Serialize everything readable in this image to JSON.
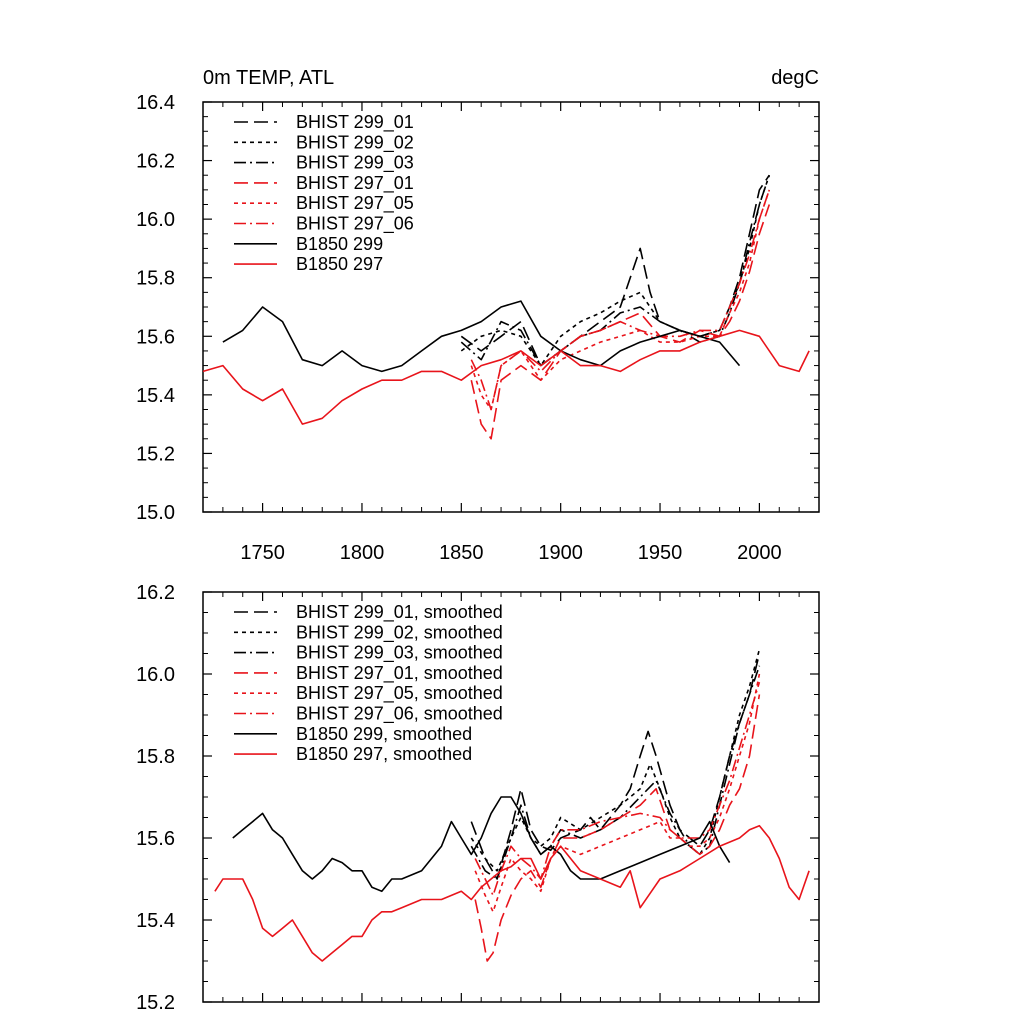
{
  "chart_data": [
    {
      "type": "line",
      "title": "0m TEMP, ATL",
      "units": "degC",
      "xlim": [
        1720,
        2030
      ],
      "ylim": [
        15.0,
        16.4
      ],
      "xticks": [
        1750,
        1800,
        1850,
        1900,
        1950,
        2000
      ],
      "yticks": [
        15.0,
        15.2,
        15.4,
        15.6,
        15.8,
        16.0,
        16.2,
        16.4
      ],
      "grid": false,
      "legend_position": "top-left",
      "series": [
        {
          "name": "BHIST 299_01",
          "color": "#000000",
          "dash": "long-dash",
          "x": [
            1850,
            1860,
            1870,
            1880,
            1890,
            1900,
            1910,
            1920,
            1930,
            1940,
            1945,
            1950,
            1960,
            1970,
            1980,
            1985,
            1990,
            1995,
            2000,
            2005
          ],
          "y": [
            15.6,
            15.55,
            15.6,
            15.65,
            15.5,
            15.55,
            15.6,
            15.65,
            15.7,
            15.9,
            15.75,
            15.65,
            15.62,
            15.6,
            15.62,
            15.7,
            15.8,
            15.95,
            16.1,
            16.15
          ]
        },
        {
          "name": "BHIST 299_02",
          "color": "#000000",
          "dash": "short-dash",
          "x": [
            1850,
            1860,
            1870,
            1880,
            1890,
            1900,
            1910,
            1920,
            1930,
            1940,
            1950,
            1960,
            1970,
            1980,
            1985,
            1990,
            1995,
            2000,
            2005
          ],
          "y": [
            15.55,
            15.6,
            15.62,
            15.6,
            15.5,
            15.6,
            15.65,
            15.68,
            15.72,
            15.75,
            15.65,
            15.62,
            15.6,
            15.62,
            15.7,
            15.78,
            15.9,
            16.05,
            16.15
          ]
        },
        {
          "name": "BHIST 299_03",
          "color": "#000000",
          "dash": "dash-dot",
          "x": [
            1850,
            1860,
            1870,
            1880,
            1890,
            1900,
            1910,
            1920,
            1930,
            1940,
            1950,
            1960,
            1970,
            1980,
            1985,
            1990,
            1995,
            2000,
            2005
          ],
          "y": [
            15.58,
            15.52,
            15.65,
            15.62,
            15.5,
            15.55,
            15.6,
            15.62,
            15.68,
            15.7,
            15.65,
            15.62,
            15.58,
            15.6,
            15.68,
            15.78,
            15.92,
            16.05,
            16.15
          ]
        },
        {
          "name": "BHIST 297_01",
          "color": "#e8141b",
          "dash": "long-dash",
          "x": [
            1855,
            1860,
            1865,
            1870,
            1880,
            1890,
            1900,
            1910,
            1920,
            1930,
            1940,
            1950,
            1960,
            1970,
            1980,
            1985,
            1990,
            1995,
            2000,
            2005
          ],
          "y": [
            15.45,
            15.3,
            15.25,
            15.45,
            15.5,
            15.45,
            15.55,
            15.6,
            15.62,
            15.65,
            15.68,
            15.6,
            15.58,
            15.62,
            15.6,
            15.65,
            15.72,
            15.82,
            15.95,
            16.05
          ]
        },
        {
          "name": "BHIST 297_05",
          "color": "#e8141b",
          "dash": "short-dash",
          "x": [
            1855,
            1860,
            1865,
            1870,
            1880,
            1890,
            1900,
            1910,
            1920,
            1930,
            1940,
            1950,
            1960,
            1970,
            1980,
            1985,
            1990,
            1995,
            2000,
            2005
          ],
          "y": [
            15.5,
            15.4,
            15.35,
            15.5,
            15.55,
            15.45,
            15.52,
            15.55,
            15.58,
            15.6,
            15.62,
            15.58,
            15.58,
            15.6,
            15.6,
            15.68,
            15.75,
            15.85,
            16.0,
            16.1
          ]
        },
        {
          "name": "BHIST 297_06",
          "color": "#e8141b",
          "dash": "dash-dot",
          "x": [
            1855,
            1860,
            1865,
            1870,
            1880,
            1890,
            1900,
            1910,
            1920,
            1930,
            1940,
            1950,
            1960,
            1970,
            1980,
            1985,
            1990,
            1995,
            2000,
            2005
          ],
          "y": [
            15.52,
            15.45,
            15.35,
            15.5,
            15.55,
            15.48,
            15.55,
            15.6,
            15.62,
            15.65,
            15.62,
            15.6,
            15.6,
            15.62,
            15.62,
            15.7,
            15.78,
            15.88,
            16.0,
            16.1
          ]
        },
        {
          "name": "B1850 299",
          "color": "#000000",
          "dash": "solid",
          "x": [
            1730,
            1740,
            1750,
            1760,
            1770,
            1780,
            1790,
            1800,
            1810,
            1820,
            1830,
            1840,
            1850,
            1860,
            1870,
            1880,
            1890,
            1900,
            1910,
            1920,
            1930,
            1940,
            1950,
            1960,
            1970,
            1980,
            1990
          ],
          "y": [
            15.58,
            15.62,
            15.7,
            15.65,
            15.52,
            15.5,
            15.55,
            15.5,
            15.48,
            15.5,
            15.55,
            15.6,
            15.62,
            15.65,
            15.7,
            15.72,
            15.6,
            15.55,
            15.52,
            15.5,
            15.55,
            15.58,
            15.6,
            15.62,
            15.6,
            15.58,
            15.5
          ]
        },
        {
          "name": "B1850 297",
          "color": "#e8141b",
          "dash": "solid",
          "x": [
            1720,
            1730,
            1740,
            1750,
            1760,
            1770,
            1780,
            1790,
            1800,
            1810,
            1820,
            1830,
            1840,
            1850,
            1860,
            1870,
            1880,
            1890,
            1900,
            1910,
            1920,
            1930,
            1940,
            1950,
            1960,
            1970,
            1980,
            1990,
            2000,
            2010,
            2020,
            2025
          ],
          "y": [
            15.48,
            15.5,
            15.42,
            15.38,
            15.42,
            15.3,
            15.32,
            15.38,
            15.42,
            15.45,
            15.45,
            15.48,
            15.48,
            15.45,
            15.5,
            15.52,
            15.55,
            15.5,
            15.55,
            15.5,
            15.5,
            15.48,
            15.52,
            15.55,
            15.55,
            15.58,
            15.6,
            15.62,
            15.6,
            15.5,
            15.48,
            15.55
          ]
        }
      ]
    },
    {
      "type": "line",
      "title": "",
      "units": "",
      "xlim": [
        1720,
        2030
      ],
      "ylim": [
        15.2,
        16.2
      ],
      "xticks": [
        1750,
        1800,
        1850,
        1900,
        1950,
        2000
      ],
      "yticks": [
        15.2,
        15.4,
        15.6,
        15.8,
        16.0,
        16.2
      ],
      "show_x_tick_labels": false,
      "grid": false,
      "legend_position": "top-left",
      "series": [
        {
          "name": "BHIST 299_01, smoothed",
          "color": "#000000",
          "dash": "long-dash",
          "x": [
            1855,
            1862,
            1868,
            1875,
            1880,
            1885,
            1890,
            1895,
            1900,
            1910,
            1915,
            1920,
            1930,
            1935,
            1940,
            1944,
            1948,
            1955,
            1960,
            1965,
            1970,
            1975,
            1980,
            1985,
            1990,
            1995,
            2000
          ],
          "y": [
            15.64,
            15.55,
            15.5,
            15.62,
            15.72,
            15.62,
            15.58,
            15.57,
            15.6,
            15.62,
            15.65,
            15.62,
            15.68,
            15.72,
            15.8,
            15.86,
            15.8,
            15.68,
            15.62,
            15.6,
            15.58,
            15.62,
            15.7,
            15.8,
            15.88,
            15.95,
            16.05
          ]
        },
        {
          "name": "BHIST 299_02, smoothed",
          "color": "#000000",
          "dash": "short-dash",
          "x": [
            1855,
            1862,
            1868,
            1875,
            1880,
            1885,
            1890,
            1895,
            1900,
            1910,
            1920,
            1930,
            1940,
            1945,
            1950,
            1955,
            1960,
            1965,
            1970,
            1975,
            1980,
            1985,
            1990,
            1995,
            2000
          ],
          "y": [
            15.6,
            15.55,
            15.52,
            15.6,
            15.65,
            15.6,
            15.58,
            15.6,
            15.65,
            15.62,
            15.65,
            15.68,
            15.72,
            15.78,
            15.72,
            15.65,
            15.6,
            15.58,
            15.56,
            15.6,
            15.7,
            15.8,
            15.9,
            15.97,
            16.06
          ]
        },
        {
          "name": "BHIST 299_03, smoothed",
          "color": "#000000",
          "dash": "dash-dot",
          "x": [
            1855,
            1862,
            1868,
            1875,
            1880,
            1885,
            1890,
            1895,
            1900,
            1910,
            1920,
            1930,
            1940,
            1948,
            1955,
            1960,
            1965,
            1970,
            1975,
            1980,
            1985,
            1990,
            1995,
            2000
          ],
          "y": [
            15.58,
            15.52,
            15.5,
            15.6,
            15.68,
            15.6,
            15.56,
            15.58,
            15.62,
            15.6,
            15.62,
            15.65,
            15.7,
            15.74,
            15.66,
            15.62,
            15.58,
            15.56,
            15.58,
            15.68,
            15.78,
            15.88,
            15.95,
            16.02
          ]
        },
        {
          "name": "BHIST 297_01, smoothed",
          "color": "#e8141b",
          "dash": "long-dash",
          "x": [
            1857,
            1860,
            1863,
            1866,
            1870,
            1875,
            1880,
            1885,
            1890,
            1895,
            1900,
            1910,
            1920,
            1930,
            1940,
            1948,
            1955,
            1960,
            1965,
            1970,
            1975,
            1980,
            1985,
            1990,
            1995,
            2000
          ],
          "y": [
            15.45,
            15.38,
            15.3,
            15.32,
            15.4,
            15.46,
            15.5,
            15.52,
            15.48,
            15.55,
            15.6,
            15.6,
            15.62,
            15.65,
            15.68,
            15.72,
            15.62,
            15.6,
            15.58,
            15.56,
            15.58,
            15.62,
            15.68,
            15.72,
            15.8,
            15.95
          ]
        },
        {
          "name": "BHIST 297_05, smoothed",
          "color": "#e8141b",
          "dash": "short-dash",
          "x": [
            1857,
            1862,
            1866,
            1870,
            1875,
            1880,
            1885,
            1890,
            1895,
            1900,
            1910,
            1920,
            1930,
            1940,
            1950,
            1955,
            1960,
            1965,
            1970,
            1975,
            1980,
            1985,
            1990,
            1995,
            2000
          ],
          "y": [
            15.52,
            15.46,
            15.42,
            15.48,
            15.55,
            15.52,
            15.5,
            15.47,
            15.55,
            15.58,
            15.56,
            15.58,
            15.6,
            15.62,
            15.64,
            15.6,
            15.6,
            15.58,
            15.58,
            15.6,
            15.65,
            15.72,
            15.8,
            15.88,
            16.0
          ]
        },
        {
          "name": "BHIST 297_06, smoothed",
          "color": "#e8141b",
          "dash": "dash-dot",
          "x": [
            1857,
            1862,
            1866,
            1870,
            1875,
            1880,
            1885,
            1890,
            1895,
            1900,
            1910,
            1920,
            1930,
            1940,
            1950,
            1955,
            1960,
            1965,
            1970,
            1975,
            1980,
            1985,
            1990,
            1995,
            2000
          ],
          "y": [
            15.55,
            15.5,
            15.46,
            15.52,
            15.58,
            15.55,
            15.53,
            15.5,
            15.58,
            15.62,
            15.62,
            15.64,
            15.65,
            15.66,
            15.65,
            15.62,
            15.6,
            15.6,
            15.6,
            15.62,
            15.68,
            15.74,
            15.82,
            15.9,
            15.98
          ]
        },
        {
          "name": "B1850 299, smoothed",
          "color": "#000000",
          "dash": "solid",
          "x": [
            1735,
            1740,
            1745,
            1750,
            1755,
            1760,
            1765,
            1770,
            1775,
            1780,
            1785,
            1790,
            1795,
            1800,
            1805,
            1810,
            1815,
            1820,
            1830,
            1840,
            1845,
            1850,
            1855,
            1860,
            1865,
            1870,
            1875,
            1880,
            1885,
            1890,
            1895,
            1900,
            1905,
            1910,
            1920,
            1930,
            1940,
            1950,
            1960,
            1970,
            1975,
            1980,
            1985
          ],
          "y": [
            15.6,
            15.62,
            15.64,
            15.66,
            15.62,
            15.6,
            15.56,
            15.52,
            15.5,
            15.52,
            15.55,
            15.54,
            15.52,
            15.52,
            15.48,
            15.47,
            15.5,
            15.5,
            15.52,
            15.58,
            15.64,
            15.6,
            15.56,
            15.6,
            15.66,
            15.7,
            15.7,
            15.66,
            15.6,
            15.56,
            15.58,
            15.56,
            15.52,
            15.5,
            15.5,
            15.52,
            15.54,
            15.56,
            15.58,
            15.6,
            15.64,
            15.58,
            15.54
          ]
        },
        {
          "name": "B1850 297, smoothed",
          "color": "#e8141b",
          "dash": "solid",
          "x": [
            1726,
            1730,
            1735,
            1740,
            1745,
            1750,
            1755,
            1760,
            1765,
            1770,
            1775,
            1780,
            1785,
            1790,
            1795,
            1800,
            1805,
            1810,
            1815,
            1820,
            1830,
            1840,
            1850,
            1855,
            1860,
            1865,
            1870,
            1875,
            1880,
            1885,
            1890,
            1895,
            1900,
            1910,
            1920,
            1930,
            1935,
            1940,
            1950,
            1960,
            1970,
            1980,
            1990,
            1995,
            2000,
            2005,
            2010,
            2015,
            2020,
            2025
          ],
          "y": [
            15.47,
            15.5,
            15.5,
            15.5,
            15.45,
            15.38,
            15.36,
            15.38,
            15.4,
            15.36,
            15.32,
            15.3,
            15.32,
            15.34,
            15.36,
            15.36,
            15.4,
            15.42,
            15.42,
            15.43,
            15.45,
            15.45,
            15.47,
            15.45,
            15.48,
            15.5,
            15.52,
            15.53,
            15.55,
            15.55,
            15.5,
            15.55,
            15.58,
            15.52,
            15.5,
            15.48,
            15.52,
            15.43,
            15.5,
            15.52,
            15.55,
            15.58,
            15.6,
            15.62,
            15.63,
            15.6,
            15.55,
            15.48,
            15.45,
            15.52
          ]
        }
      ]
    }
  ]
}
